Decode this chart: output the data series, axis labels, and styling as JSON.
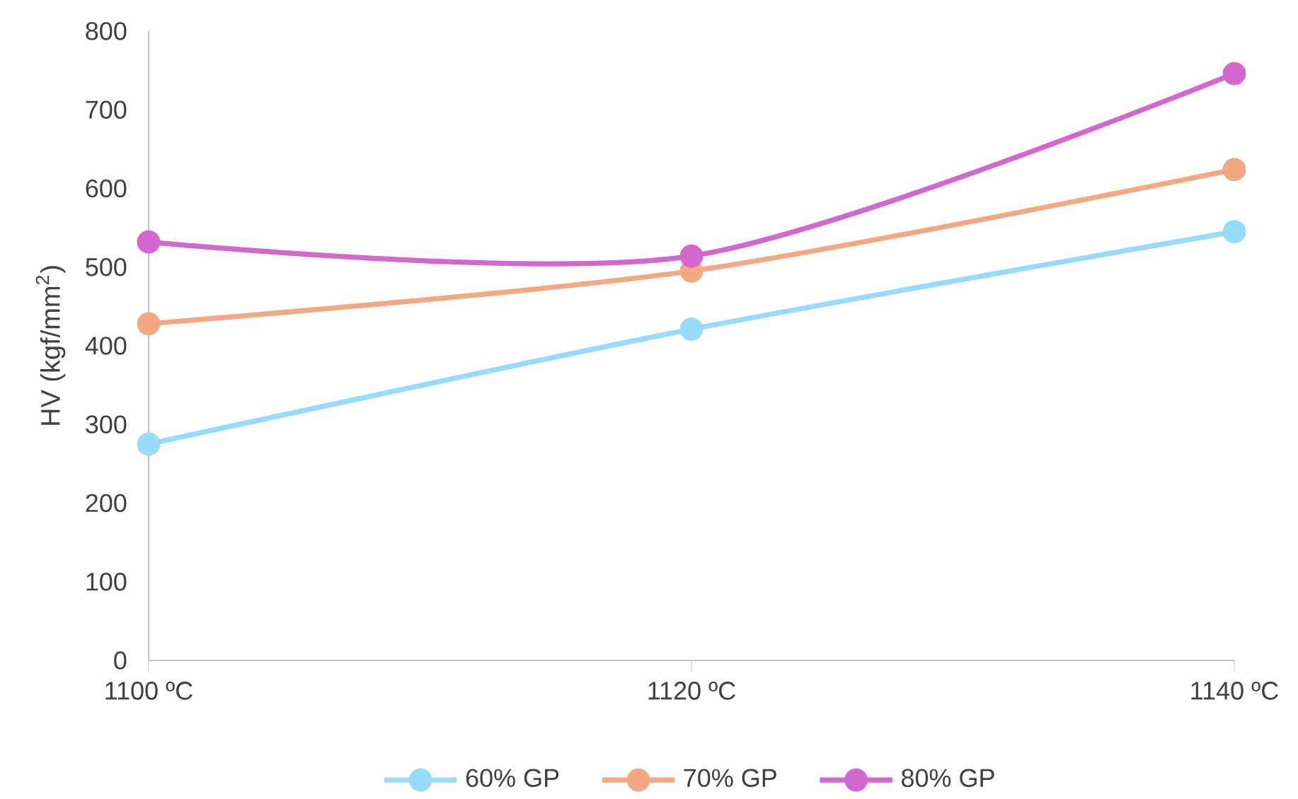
{
  "chart_data": {
    "type": "line",
    "ylabel": "HV (kgf/mm$^{2}$)",
    "categories": [
      "1100 ºC",
      "1120 ºC",
      "1140 ºC"
    ],
    "series": [
      {
        "name": "60% GP",
        "color": "#94dcf8",
        "values": [
          275,
          421,
          545
        ]
      },
      {
        "name": "70% GP",
        "color": "#f4a882",
        "values": [
          428,
          495,
          624
        ]
      },
      {
        "name": "80% GP",
        "color": "#d467cf",
        "values": [
          532,
          514,
          746
        ]
      }
    ],
    "ylim": [
      0,
      800
    ],
    "yticks": [
      0,
      100,
      200,
      300,
      400,
      500,
      600,
      700,
      800
    ],
    "legend": "bottom",
    "marker": "circle",
    "line_style": "solid"
  }
}
